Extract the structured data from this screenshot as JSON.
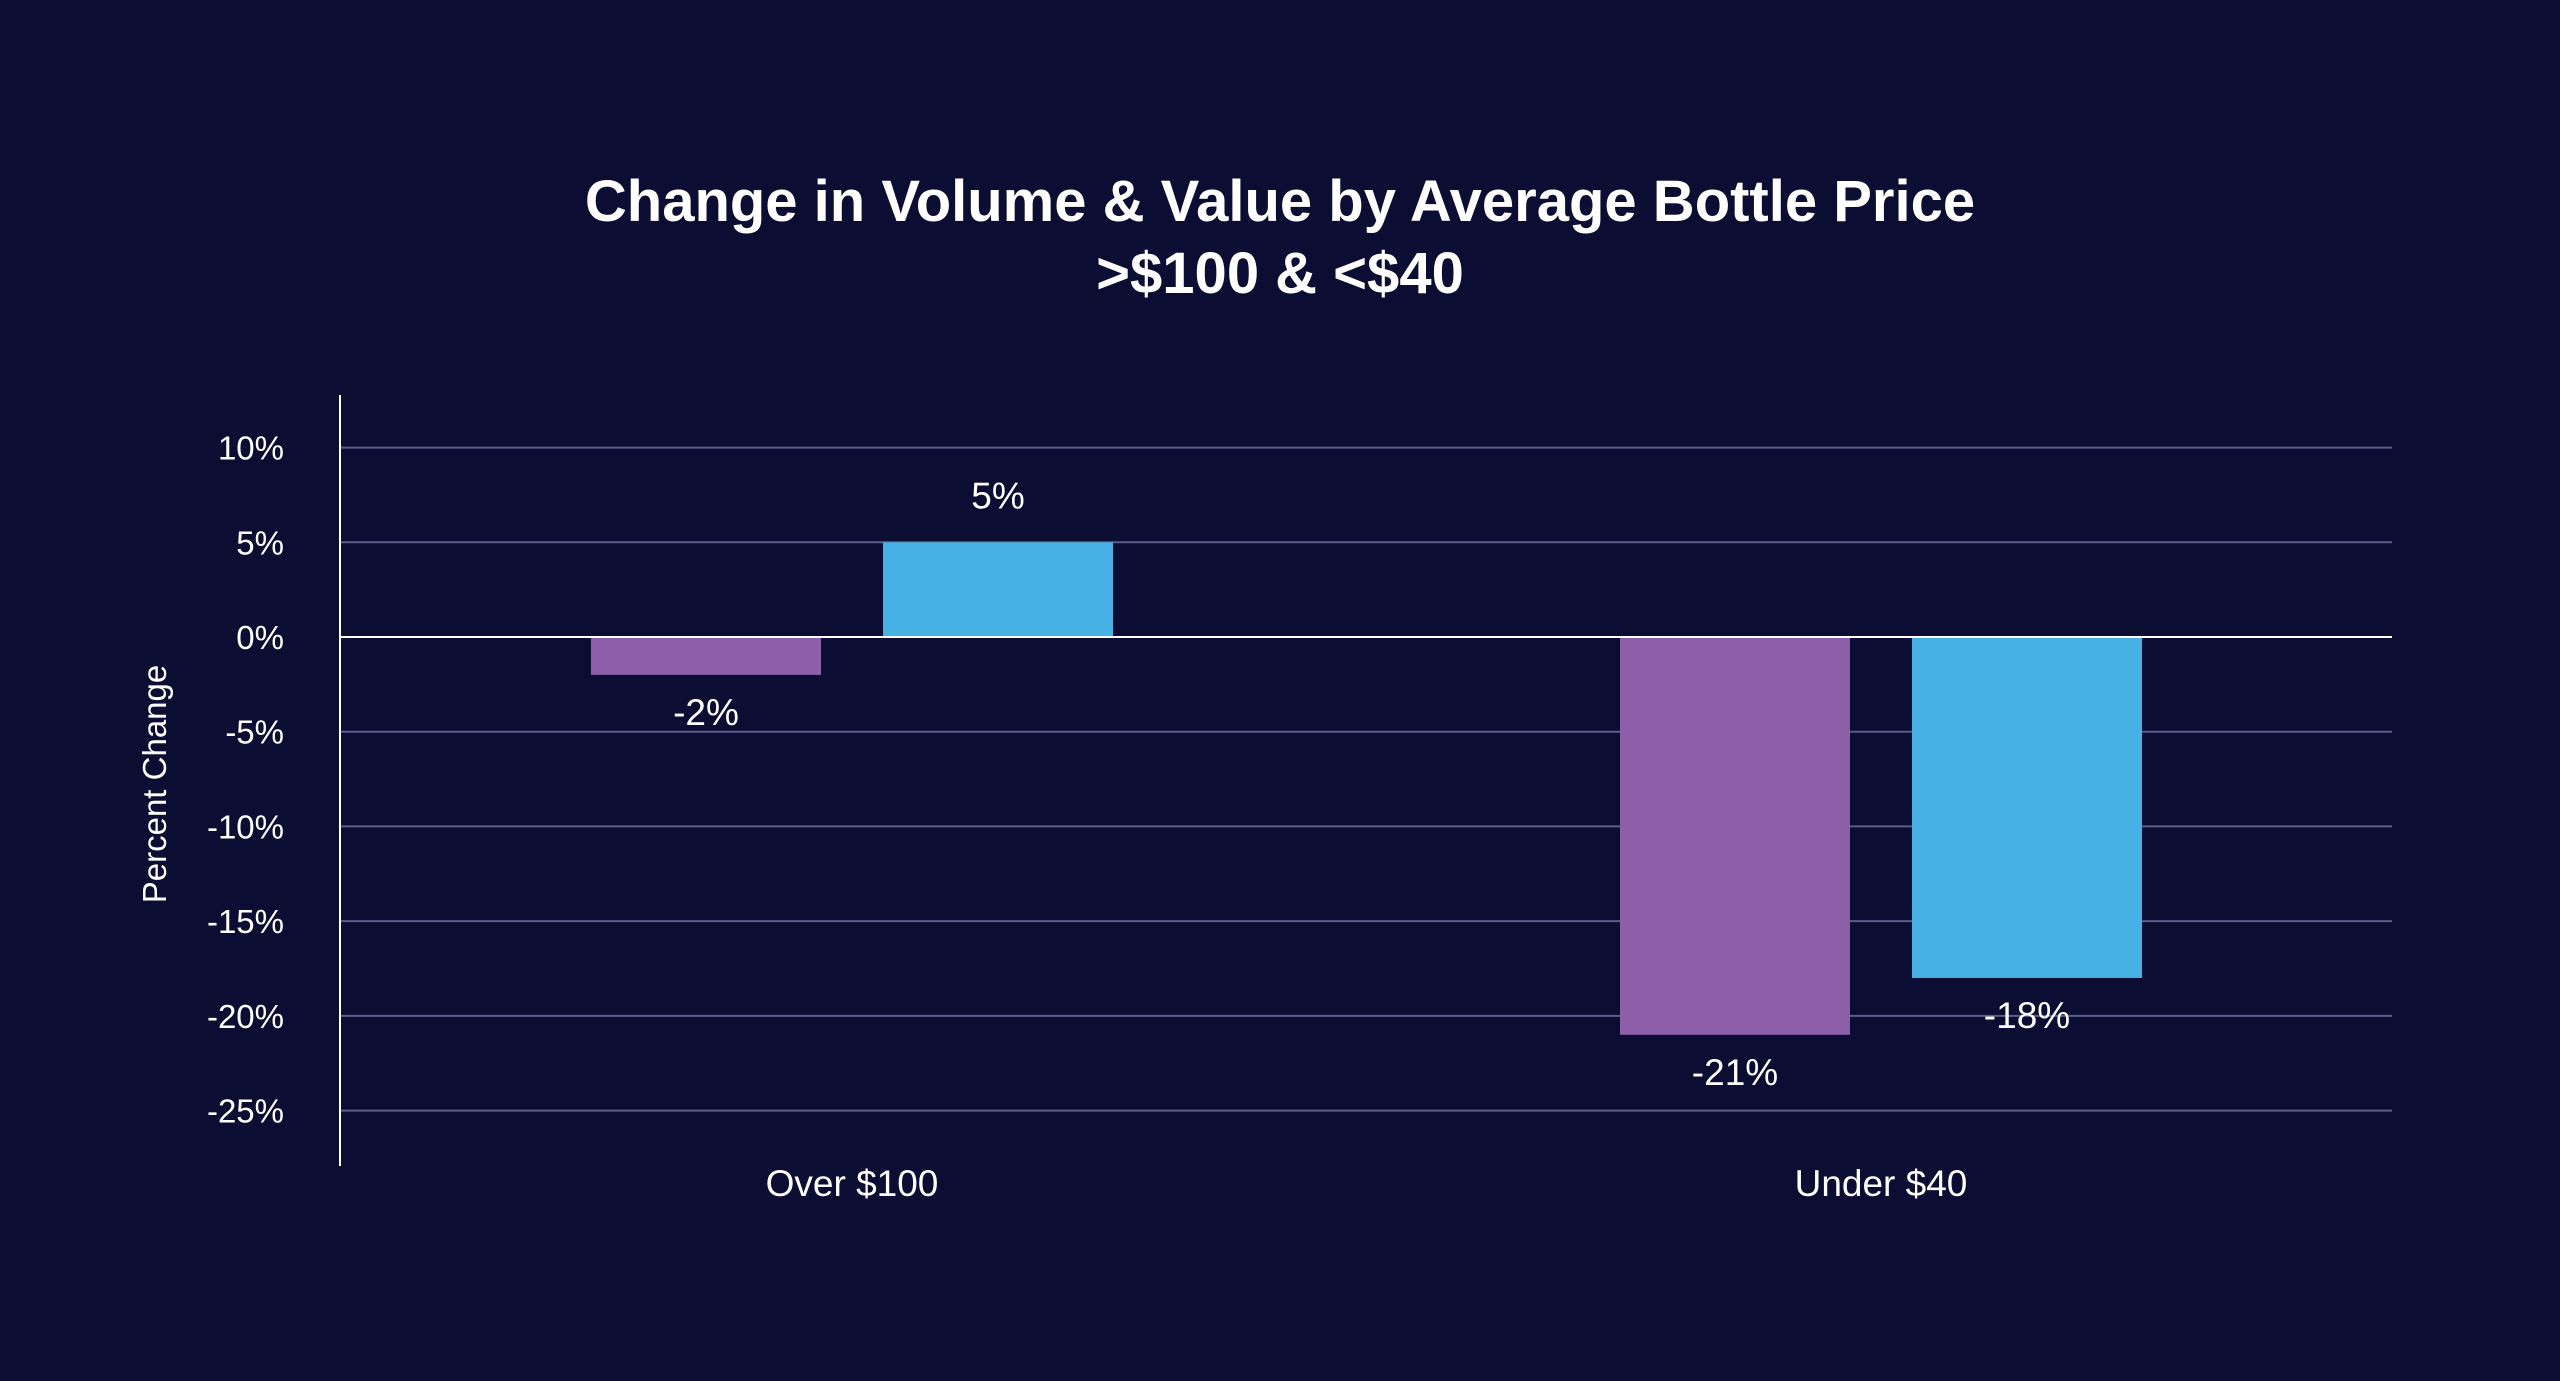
{
  "chart_data": {
    "type": "bar",
    "title": "Change in Volume & Value by Average Bottle Price",
    "subtitle": ">$100 & <$40",
    "xlabel": "",
    "ylabel": "Percent Change",
    "categories": [
      "Over $100",
      "Under $40"
    ],
    "series": [
      {
        "values": [
          -2,
          -21
        ],
        "labels": [
          "-2%",
          "-21%"
        ],
        "color": "#8c5fa8"
      },
      {
        "values": [
          5,
          -18
        ],
        "labels": [
          "5%",
          "-18%"
        ],
        "color": "#47b0e4"
      }
    ],
    "ylim": [
      -25,
      10
    ],
    "yticks": [
      10,
      5,
      0,
      -5,
      -10,
      -15,
      -20,
      -25
    ],
    "ytick_labels": [
      "10%",
      "5%",
      "0%",
      "-5%",
      "-10%",
      "-15%",
      "-20%",
      "-25%"
    ],
    "grid": true,
    "legend": "none"
  },
  "colors": {
    "background": "#0b0d33",
    "grid": "#5d5d8c",
    "axis": "#ffffff"
  }
}
